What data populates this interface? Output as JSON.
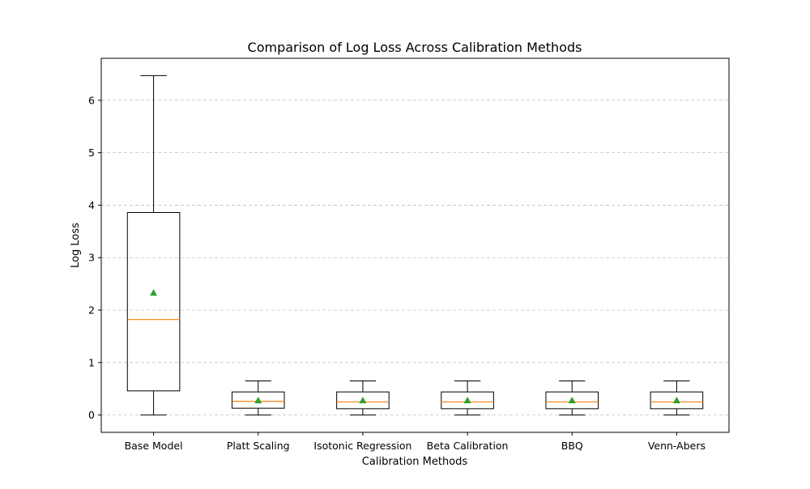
{
  "chart_data": {
    "type": "box",
    "title": "Comparison of Log Loss Across Calibration Methods",
    "xlabel": "Calibration Methods",
    "ylabel": "Log Loss",
    "ylim": [
      -0.33,
      6.8
    ],
    "yticks": [
      0,
      1,
      2,
      3,
      4,
      5,
      6
    ],
    "grid": "y-dashed",
    "colors": {
      "box": "#000000",
      "median": "#ff7f0e",
      "mean_marker": "#2ca02c",
      "grid": "#b0b0b0"
    },
    "categories": [
      "Base Model",
      "Platt Scaling",
      "Isotonic Regression",
      "Beta Calibration",
      "BBQ",
      "Venn-Abers"
    ],
    "boxes": [
      {
        "whisker_low": 0.0,
        "q1": 0.46,
        "median": 1.82,
        "q3": 3.86,
        "whisker_high": 6.47,
        "mean": 2.33
      },
      {
        "whisker_low": 0.0,
        "q1": 0.13,
        "median": 0.26,
        "q3": 0.44,
        "whisker_high": 0.65,
        "mean": 0.28
      },
      {
        "whisker_low": 0.0,
        "q1": 0.12,
        "median": 0.25,
        "q3": 0.44,
        "whisker_high": 0.65,
        "mean": 0.28
      },
      {
        "whisker_low": 0.0,
        "q1": 0.12,
        "median": 0.25,
        "q3": 0.44,
        "whisker_high": 0.65,
        "mean": 0.28
      },
      {
        "whisker_low": 0.0,
        "q1": 0.12,
        "median": 0.25,
        "q3": 0.44,
        "whisker_high": 0.65,
        "mean": 0.28
      },
      {
        "whisker_low": 0.0,
        "q1": 0.12,
        "median": 0.25,
        "q3": 0.44,
        "whisker_high": 0.65,
        "mean": 0.28
      }
    ]
  }
}
